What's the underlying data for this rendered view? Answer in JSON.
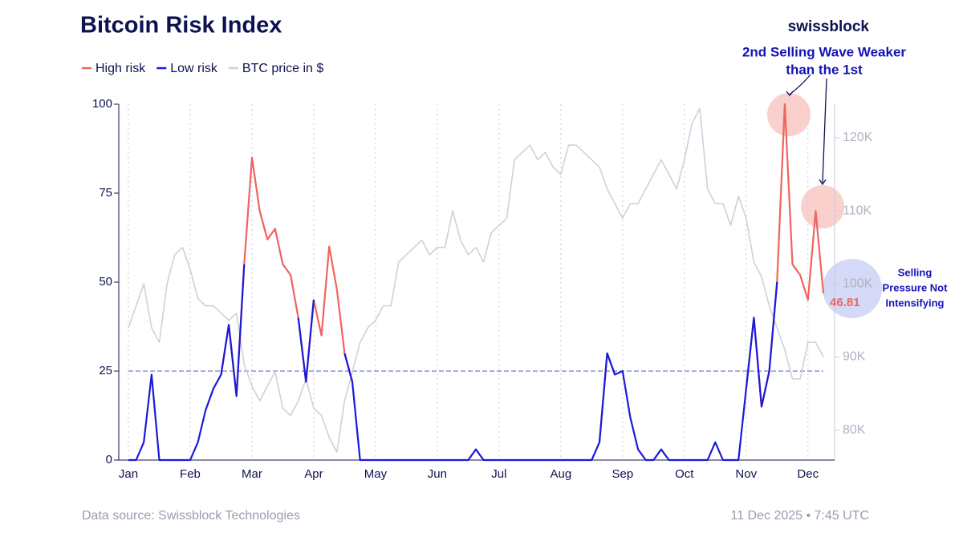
{
  "chart_data": {
    "type": "line",
    "title": "Bitcoin Risk Index",
    "brand": "swissblock",
    "source": "Data source: Swissblock Technologies",
    "timestamp": "11 Dec 2025 • 7:45 UTC",
    "categories": [
      "Jan",
      null,
      null,
      null,
      null,
      null,
      null,
      null,
      "Feb",
      null,
      null,
      null,
      null,
      null,
      null,
      null,
      "Mar",
      null,
      null,
      null,
      null,
      null,
      null,
      null,
      "Apr",
      null,
      null,
      null,
      null,
      null,
      null,
      null,
      "May",
      null,
      null,
      null,
      null,
      null,
      null,
      null,
      "Jun",
      null,
      null,
      null,
      null,
      null,
      null,
      null,
      "Jul",
      null,
      null,
      null,
      null,
      null,
      null,
      null,
      "Aug",
      null,
      null,
      null,
      null,
      null,
      null,
      null,
      "Sep",
      null,
      null,
      null,
      null,
      null,
      null,
      null,
      "Oct",
      null,
      null,
      null,
      null,
      null,
      null,
      null,
      "Nov",
      null,
      null,
      null,
      null,
      null,
      null,
      null,
      "Dec",
      null,
      null
    ],
    "series": [
      {
        "name": "High risk",
        "color": "#f0635f",
        "values": [
          null,
          null,
          null,
          null,
          null,
          null,
          null,
          null,
          null,
          null,
          null,
          null,
          24,
          38,
          18,
          55,
          85,
          70,
          62,
          65,
          55,
          52,
          40,
          22,
          45,
          35,
          60,
          48,
          30,
          22,
          null,
          null,
          null,
          null,
          null,
          null,
          null,
          null,
          null,
          null,
          null,
          null,
          null,
          null,
          null,
          null,
          null,
          null,
          null,
          null,
          null,
          null,
          null,
          null,
          null,
          null,
          null,
          null,
          null,
          null,
          null,
          5,
          30,
          24,
          null,
          null,
          null,
          null,
          null,
          null,
          null,
          null,
          null,
          null,
          null,
          null,
          null,
          null,
          null,
          null,
          20,
          40,
          15,
          25,
          50,
          100,
          55,
          52,
          45,
          70,
          46.81
        ]
      },
      {
        "name": "Low risk",
        "color": "#1a1adb",
        "values": [
          0,
          0,
          5,
          24,
          0,
          0,
          0,
          0,
          0,
          5,
          14,
          20,
          24,
          38,
          18,
          55,
          null,
          null,
          null,
          null,
          null,
          null,
          40,
          22,
          45,
          null,
          null,
          null,
          30,
          22,
          0,
          0,
          0,
          0,
          0,
          0,
          0,
          0,
          0,
          0,
          0,
          0,
          0,
          0,
          0,
          3,
          0,
          0,
          0,
          0,
          0,
          0,
          0,
          0,
          0,
          0,
          0,
          0,
          0,
          0,
          0,
          5,
          30,
          24,
          25,
          12,
          3,
          0,
          0,
          3,
          0,
          0,
          0,
          0,
          0,
          0,
          5,
          0,
          0,
          0,
          20,
          40,
          15,
          25,
          50,
          null,
          null,
          null,
          null,
          null,
          null
        ]
      },
      {
        "name": "BTC price in $",
        "color": "#cfd0dc",
        "axis": "y2",
        "values": [
          94000,
          97000,
          100000,
          94000,
          92000,
          100000,
          104000,
          105000,
          102000,
          98000,
          97000,
          97000,
          96000,
          95000,
          96000,
          89000,
          86000,
          84000,
          86000,
          88000,
          83000,
          82000,
          84000,
          87000,
          83000,
          82000,
          79000,
          77000,
          84000,
          88000,
          92000,
          94000,
          95000,
          97000,
          97000,
          103000,
          104000,
          105000,
          106000,
          104000,
          105000,
          105000,
          110000,
          106000,
          104000,
          105000,
          103000,
          107000,
          108000,
          109000,
          117000,
          118000,
          119000,
          117000,
          118000,
          116000,
          115000,
          119000,
          119000,
          118000,
          117000,
          116000,
          113000,
          111000,
          109000,
          111000,
          111000,
          113000,
          115000,
          117000,
          115000,
          113000,
          117000,
          122000,
          124000,
          113000,
          111000,
          111000,
          108000,
          112000,
          109000,
          103000,
          101000,
          97000,
          94000,
          91000,
          87000,
          87000,
          92000,
          92000,
          90000
        ]
      }
    ],
    "ylim": [
      0,
      100
    ],
    "yticks": [
      0,
      25,
      50,
      75,
      100
    ],
    "y2lim": [
      75900,
      124600
    ],
    "y2ticks": [
      {
        "value": 80000,
        "label": "80K"
      },
      {
        "value": 90000,
        "label": "90K"
      },
      {
        "value": 100000,
        "label": "100K"
      },
      {
        "value": 110000,
        "label": "110K"
      },
      {
        "value": 120000,
        "label": "120K"
      }
    ],
    "threshold": 25,
    "grid": true,
    "legend": "top-left",
    "annotations": [
      {
        "text": [
          "2nd Selling Wave Weaker",
          "than the 1st"
        ]
      },
      {
        "text": [
          "Selling",
          "Pressure Not",
          "Intensifying"
        ]
      }
    ]
  }
}
